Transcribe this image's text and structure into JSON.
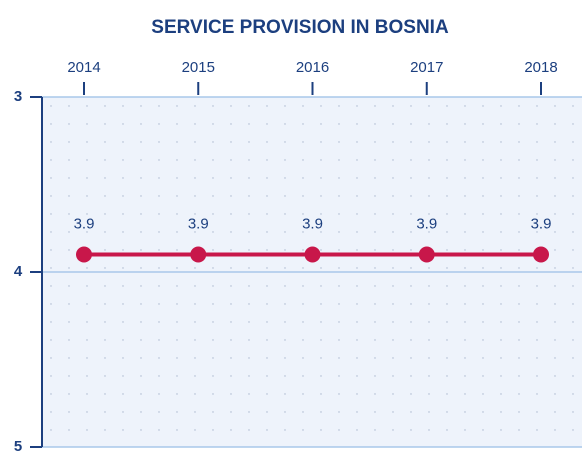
{
  "chart_data": {
    "type": "line",
    "title": "SERVICE PROVISION IN BOSNIA",
    "categories": [
      "2014",
      "2015",
      "2016",
      "2017",
      "2018"
    ],
    "values": [
      3.9,
      3.9,
      3.9,
      3.9,
      3.9
    ],
    "color": "#c8174a",
    "ylim": [
      3,
      5
    ],
    "yticks": [
      3,
      4,
      5
    ],
    "y_inverted": true,
    "grid": true
  }
}
